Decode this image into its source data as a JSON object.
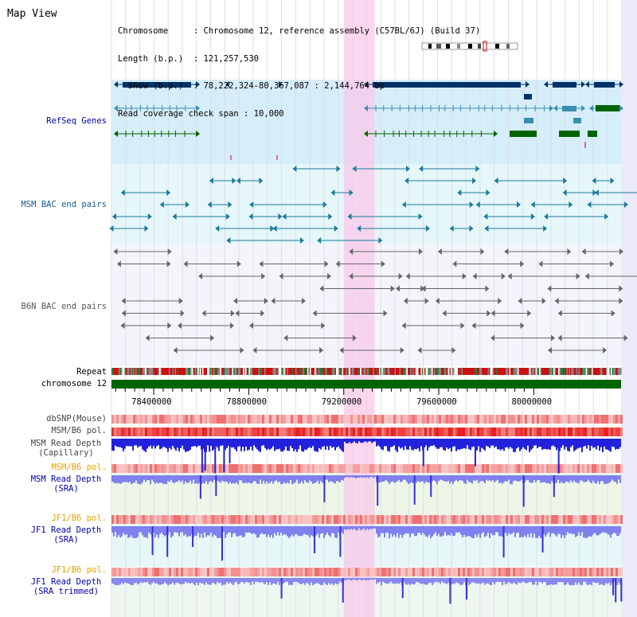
{
  "view": {
    "title": "Map View",
    "info_lines": [
      "Chromosome     : Chromosome 12, reference assembly (C57BL/6J) (Build 37)",
      "Length (b.p.)  : 121,257,530",
      "  Show (b.p.)  : 78,222,324-80,367,087 : 2,144,764 bp",
      "Read coverage check span : 10,000"
    ]
  },
  "region": {
    "start": 78222324,
    "end": 80367087,
    "highlight_start": 79200000,
    "highlight_end": 79330000
  },
  "axis": {
    "ticks": [
      78400000,
      78800000,
      79200000,
      79600000,
      80000000
    ]
  },
  "tracks": {
    "refseq": {
      "label": "RefSeq Genes",
      "color": "#0000aa"
    },
    "msm_bac": {
      "label": "MSM BAC end pairs",
      "color": "#1a5a8a"
    },
    "b6n_bac": {
      "label": "B6N BAC end pairs",
      "color": "#555555"
    },
    "repeat": {
      "label": "Repeat",
      "color": "#000000"
    },
    "chromosome": {
      "label": "chromosome 12",
      "color": "#000000",
      "bar_color": "#006400"
    },
    "dbsnp": {
      "label": "dbSNP(Mouse)",
      "color": "#444444"
    },
    "msm_b6_pol_1": {
      "label": "MSM/B6 pol.",
      "color": "#444444"
    },
    "msm_depth_cap": {
      "label": "MSM Read Depth\n(Capillary)",
      "color": "#444444"
    },
    "msm_b6_pol_2": {
      "label": "MSM/B6 pol.",
      "color": "#e8a000"
    },
    "msm_depth_sra": {
      "label": "MSM Read Depth\n(SRA)",
      "color": "#0000aa"
    },
    "jf1_b6_pol_1": {
      "label": "JF1/B6 pol.",
      "color": "#e8a000"
    },
    "jf1_depth_sra": {
      "label": "JF1 Read Depth\n(SRA)",
      "color": "#0000aa"
    },
    "jf1_b6_pol_2": {
      "label": "JF1/B6 pol.",
      "color": "#e8a000"
    },
    "jf1_depth_trim": {
      "label": "JF1 Read Depth\n(SRA trimmed)",
      "color": "#0000aa"
    }
  }
}
